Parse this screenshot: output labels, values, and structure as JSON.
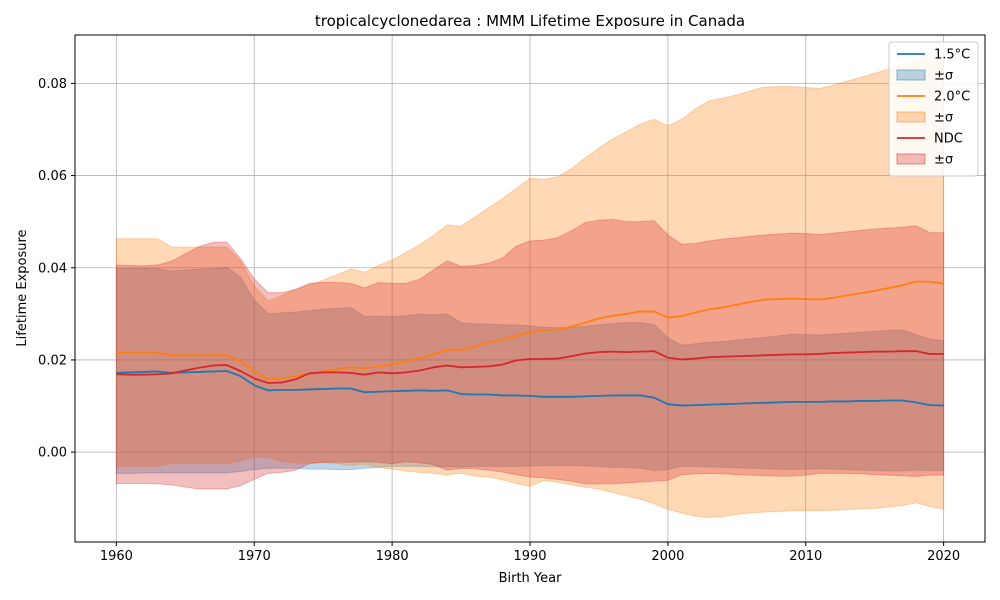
{
  "chart_data": {
    "type": "area",
    "title": "tropicalcyclonedarea : MMM Lifetime Exposure in Canada",
    "xlabel": "Birth Year",
    "ylabel": "Lifetime Exposure",
    "xlim": [
      1957,
      2023
    ],
    "ylim": [
      -0.0195,
      0.0905
    ],
    "xticks": [
      1960,
      1970,
      1980,
      1990,
      2000,
      2010,
      2020
    ],
    "xtick_labels": [
      "1960",
      "1970",
      "1980",
      "1990",
      "2000",
      "2010",
      "2020"
    ],
    "yticks": [
      0.0,
      0.02,
      0.04,
      0.06,
      0.08
    ],
    "ytick_labels": [
      "0.00",
      "0.02",
      "0.04",
      "0.06",
      "0.08"
    ],
    "grid": true,
    "legend_position": "top-right",
    "x": [
      1960,
      1961,
      1962,
      1963,
      1964,
      1965,
      1966,
      1967,
      1968,
      1969,
      1970,
      1971,
      1972,
      1973,
      1974,
      1975,
      1976,
      1977,
      1978,
      1979,
      1980,
      1981,
      1982,
      1983,
      1984,
      1985,
      1986,
      1987,
      1988,
      1989,
      1990,
      1991,
      1992,
      1993,
      1994,
      1995,
      1996,
      1997,
      1998,
      1999,
      2000,
      2001,
      2002,
      2003,
      2004,
      2005,
      2006,
      2007,
      2008,
      2009,
      2010,
      2011,
      2012,
      2013,
      2014,
      2015,
      2016,
      2017,
      2018,
      2019,
      2020
    ],
    "series": [
      {
        "name": "1.5°C",
        "band_label": "±σ",
        "color": "#1f77b4",
        "band_color": "#1f77b4",
        "band_opacity": 0.3,
        "mean": [
          0.0172,
          0.0173,
          0.0174,
          0.0175,
          0.0172,
          0.0173,
          0.0174,
          0.0175,
          0.0176,
          0.0165,
          0.0145,
          0.0134,
          0.0135,
          0.0135,
          0.0136,
          0.0137,
          0.0138,
          0.0138,
          0.013,
          0.0131,
          0.0132,
          0.0133,
          0.0134,
          0.0133,
          0.0134,
          0.0126,
          0.0125,
          0.0125,
          0.0123,
          0.0123,
          0.0122,
          0.012,
          0.012,
          0.012,
          0.0121,
          0.0122,
          0.0123,
          0.0123,
          0.0123,
          0.0118,
          0.0104,
          0.0101,
          0.0102,
          0.0103,
          0.0104,
          0.0105,
          0.0106,
          0.0107,
          0.0108,
          0.0109,
          0.0109,
          0.0109,
          0.011,
          0.011,
          0.0111,
          0.0111,
          0.0112,
          0.0112,
          0.0108,
          0.0102,
          0.0101
        ],
        "upper": [
          0.0398,
          0.0398,
          0.0398,
          0.0398,
          0.0393,
          0.0395,
          0.0397,
          0.0398,
          0.0401,
          0.038,
          0.033,
          0.03,
          0.0302,
          0.0304,
          0.0307,
          0.031,
          0.0312,
          0.0314,
          0.0294,
          0.0295,
          0.0294,
          0.0296,
          0.0299,
          0.0298,
          0.0299,
          0.0281,
          0.0278,
          0.0278,
          0.0276,
          0.0276,
          0.0274,
          0.0271,
          0.027,
          0.027,
          0.0273,
          0.0276,
          0.0279,
          0.0281,
          0.0281,
          0.0277,
          0.0248,
          0.0232,
          0.0235,
          0.0238,
          0.024,
          0.0243,
          0.0246,
          0.0249,
          0.0252,
          0.0256,
          0.0255,
          0.0254,
          0.0256,
          0.0258,
          0.026,
          0.0262,
          0.0264,
          0.0265,
          0.0255,
          0.0245,
          0.0242
        ],
        "lower": [
          -0.0046,
          -0.0046,
          -0.0045,
          -0.0045,
          -0.0045,
          -0.0045,
          -0.0045,
          -0.0045,
          -0.0045,
          -0.0042,
          -0.0038,
          -0.0035,
          -0.0035,
          -0.0035,
          -0.0037,
          -0.0037,
          -0.0038,
          -0.0038,
          -0.0035,
          -0.0033,
          -0.0031,
          -0.0031,
          -0.0031,
          -0.0032,
          -0.0032,
          -0.0032,
          -0.0031,
          -0.0031,
          -0.0031,
          -0.0031,
          -0.003,
          -0.0029,
          -0.0029,
          -0.0029,
          -0.003,
          -0.0031,
          -0.0033,
          -0.0033,
          -0.0035,
          -0.004,
          -0.0038,
          -0.0031,
          -0.0031,
          -0.0032,
          -0.0033,
          -0.0034,
          -0.0035,
          -0.0036,
          -0.0037,
          -0.0038,
          -0.0037,
          -0.0036,
          -0.0037,
          -0.0038,
          -0.0039,
          -0.004,
          -0.0041,
          -0.0041,
          -0.0039,
          -0.004,
          -0.004
        ]
      },
      {
        "name": "2.0°C",
        "band_label": "±σ",
        "color": "#ff7f0e",
        "band_color": "#ff7f0e",
        "band_opacity": 0.3,
        "mean": [
          0.0216,
          0.0216,
          0.0216,
          0.0216,
          0.021,
          0.021,
          0.021,
          0.021,
          0.021,
          0.0198,
          0.0175,
          0.0158,
          0.016,
          0.0165,
          0.017,
          0.0175,
          0.018,
          0.0184,
          0.0182,
          0.0186,
          0.019,
          0.0196,
          0.0203,
          0.0212,
          0.0222,
          0.0222,
          0.0229,
          0.0238,
          0.0245,
          0.0252,
          0.026,
          0.0265,
          0.0266,
          0.0272,
          0.0281,
          0.029,
          0.0296,
          0.03,
          0.0305,
          0.0305,
          0.0292,
          0.0295,
          0.0303,
          0.031,
          0.0314,
          0.032,
          0.0326,
          0.0331,
          0.0332,
          0.0333,
          0.0332,
          0.0331,
          0.0335,
          0.034,
          0.0345,
          0.035,
          0.0356,
          0.0362,
          0.037,
          0.037,
          0.0366
        ],
        "upper": [
          0.0463,
          0.0463,
          0.0463,
          0.0463,
          0.0445,
          0.0445,
          0.0445,
          0.0445,
          0.0445,
          0.0415,
          0.036,
          0.0328,
          0.034,
          0.0353,
          0.0363,
          0.0373,
          0.0385,
          0.0397,
          0.039,
          0.0405,
          0.0417,
          0.0433,
          0.045,
          0.047,
          0.0493,
          0.049,
          0.051,
          0.053,
          0.055,
          0.0572,
          0.0594,
          0.0592,
          0.0597,
          0.0615,
          0.0638,
          0.066,
          0.068,
          0.0695,
          0.0712,
          0.0722,
          0.0708,
          0.0722,
          0.0745,
          0.0762,
          0.0768,
          0.0775,
          0.0784,
          0.0792,
          0.0793,
          0.0793,
          0.0791,
          0.0789,
          0.0796,
          0.0805,
          0.0813,
          0.0822,
          0.0831,
          0.084,
          0.085,
          0.0858,
          0.0856
        ],
        "lower": [
          -0.0031,
          -0.0031,
          -0.0031,
          -0.0031,
          -0.0025,
          -0.0025,
          -0.0025,
          -0.0025,
          -0.0025,
          -0.0019,
          -0.001,
          -0.0012,
          -0.002,
          -0.0024,
          -0.0023,
          -0.0023,
          -0.0025,
          -0.0029,
          -0.0026,
          -0.0033,
          -0.0037,
          -0.0041,
          -0.0044,
          -0.0046,
          -0.0049,
          -0.0046,
          -0.0052,
          -0.0054,
          -0.006,
          -0.0068,
          -0.0074,
          -0.0062,
          -0.0065,
          -0.0071,
          -0.0076,
          -0.008,
          -0.0088,
          -0.0095,
          -0.0102,
          -0.0112,
          -0.0124,
          -0.0132,
          -0.0139,
          -0.0142,
          -0.014,
          -0.0135,
          -0.0132,
          -0.013,
          -0.0129,
          -0.0127,
          -0.0127,
          -0.0127,
          -0.0126,
          -0.0125,
          -0.0123,
          -0.0122,
          -0.0119,
          -0.0116,
          -0.011,
          -0.0118,
          -0.0124
        ]
      },
      {
        "name": "NDC",
        "band_label": "±σ",
        "color": "#d62728",
        "band_color": "#d62728",
        "band_opacity": 0.3,
        "mean": [
          0.0169,
          0.0168,
          0.0168,
          0.0169,
          0.0171,
          0.0177,
          0.0183,
          0.0188,
          0.0189,
          0.0176,
          0.016,
          0.015,
          0.0151,
          0.0158,
          0.0171,
          0.0173,
          0.0173,
          0.0172,
          0.0168,
          0.0173,
          0.0171,
          0.0173,
          0.0177,
          0.0184,
          0.0188,
          0.0184,
          0.0185,
          0.0186,
          0.019,
          0.0199,
          0.0202,
          0.0202,
          0.0203,
          0.0208,
          0.0214,
          0.0217,
          0.0218,
          0.0217,
          0.0218,
          0.0219,
          0.0205,
          0.0201,
          0.0203,
          0.0206,
          0.0207,
          0.0208,
          0.0209,
          0.021,
          0.0211,
          0.0212,
          0.0212,
          0.0213,
          0.0215,
          0.0216,
          0.0217,
          0.0218,
          0.0218,
          0.0219,
          0.0219,
          0.0213,
          0.0213
        ],
        "upper": [
          0.0406,
          0.0405,
          0.0404,
          0.0406,
          0.0414,
          0.043,
          0.0446,
          0.0455,
          0.0456,
          0.042,
          0.0376,
          0.0346,
          0.0346,
          0.0353,
          0.0366,
          0.0368,
          0.0368,
          0.0366,
          0.0356,
          0.0368,
          0.0366,
          0.0366,
          0.0375,
          0.0395,
          0.0415,
          0.0403,
          0.0405,
          0.041,
          0.0421,
          0.0447,
          0.0458,
          0.046,
          0.0465,
          0.048,
          0.0498,
          0.0503,
          0.0505,
          0.05,
          0.05,
          0.0502,
          0.0471,
          0.0451,
          0.0453,
          0.0458,
          0.0462,
          0.0465,
          0.0468,
          0.0471,
          0.0473,
          0.0475,
          0.0474,
          0.0472,
          0.0475,
          0.0478,
          0.0481,
          0.0484,
          0.0486,
          0.0488,
          0.0491,
          0.0476,
          0.0476
        ],
        "lower": [
          -0.0068,
          -0.0068,
          -0.0068,
          -0.0069,
          -0.0071,
          -0.0076,
          -0.008,
          -0.008,
          -0.008,
          -0.0073,
          -0.0059,
          -0.0046,
          -0.0044,
          -0.0039,
          -0.0025,
          -0.0022,
          -0.0022,
          -0.0022,
          -0.0021,
          -0.0022,
          -0.0025,
          -0.0021,
          -0.0023,
          -0.0027,
          -0.0039,
          -0.0035,
          -0.0036,
          -0.0039,
          -0.0043,
          -0.0049,
          -0.0054,
          -0.0056,
          -0.0059,
          -0.0063,
          -0.0069,
          -0.0069,
          -0.0069,
          -0.0067,
          -0.0065,
          -0.0063,
          -0.0061,
          -0.0049,
          -0.0047,
          -0.0046,
          -0.0047,
          -0.0049,
          -0.005,
          -0.0051,
          -0.0052,
          -0.0052,
          -0.005,
          -0.0046,
          -0.0046,
          -0.0046,
          -0.0047,
          -0.0049,
          -0.005,
          -0.0051,
          -0.0053,
          -0.005,
          -0.005
        ]
      }
    ]
  }
}
